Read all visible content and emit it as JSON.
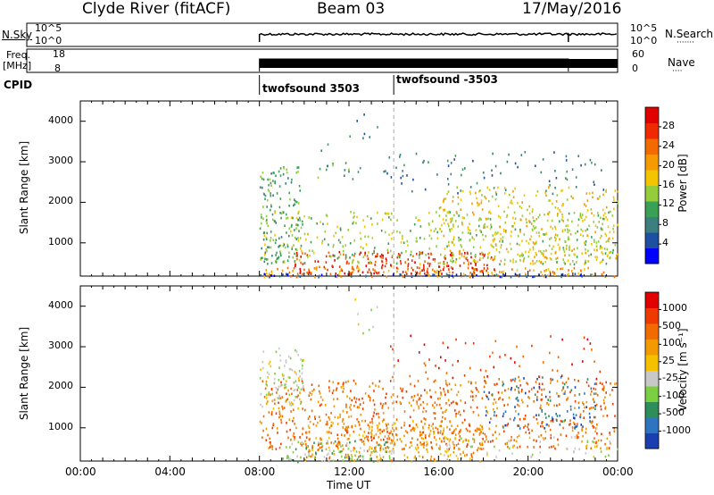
{
  "header": {
    "station": "Clyde River (fitACF)",
    "beam": "Beam 03",
    "date": "17/May/2016"
  },
  "strip_nsky": {
    "left_label": "N.Sky",
    "left_ticks": [
      "10^5",
      "10^0"
    ],
    "right_ticks": [
      "10^5",
      "10^0"
    ],
    "right_label": "N.Search",
    "right_dots": "·······"
  },
  "strip_freq": {
    "left_label_1": "Freq.",
    "left_label_2": "[MHz]",
    "left_ticks": [
      "18",
      "8"
    ],
    "right_ticks": [
      "60",
      "0"
    ],
    "right_label": "Nave",
    "right_dots": "····"
  },
  "cpid": {
    "label": "CPID",
    "segments": [
      {
        "text": "twofsound 3503",
        "start_hour": 8.0
      },
      {
        "text": "twofsound -3503",
        "start_hour": 14.0
      }
    ]
  },
  "time_axis": {
    "ticks": [
      "00:00",
      "04:00",
      "08:00",
      "12:00",
      "16:00",
      "20:00",
      "00:00"
    ],
    "label": "Time UT"
  },
  "chart_data": [
    {
      "type": "heatmap",
      "title": "",
      "xlabel": "Time UT",
      "ylabel": "Slant Range [km]",
      "x_range_hours": [
        0,
        24
      ],
      "y_range_km": [
        180,
        4500
      ],
      "yticks": [
        1000,
        2000,
        3000,
        4000
      ],
      "colorbar_label": "Power [dB]",
      "colorbar_ticks": [
        "28",
        "24",
        "20",
        "16",
        "12",
        "8",
        "4"
      ],
      "colorbar_range": [
        0,
        32
      ],
      "colors": [
        "#0000ff",
        "#1e4fa0",
        "#3b7f7f",
        "#3aa056",
        "#95cc3c",
        "#f2c500",
        "#f59a00",
        "#f26b00",
        "#f02a00",
        "#e00000"
      ],
      "data_start_hour": 8.0,
      "mode_change_hour": 14.0,
      "regions": [
        {
          "t": [
            8.0,
            24.0
          ],
          "r": [
            180,
            420
          ],
          "level": 6,
          "density": 0.55
        },
        {
          "t": [
            8.0,
            24.0
          ],
          "r": [
            180,
            260
          ],
          "level": 1,
          "density": 0.9
        },
        {
          "t": [
            9.5,
            18.5
          ],
          "r": [
            250,
            800
          ],
          "level": 8,
          "density": 0.65
        },
        {
          "t": [
            8.0,
            24.0
          ],
          "r": [
            500,
            1800
          ],
          "level": 4,
          "density": 0.35
        },
        {
          "t": [
            8.0,
            9.8
          ],
          "r": [
            500,
            2900
          ],
          "level": 3,
          "density": 0.5
        },
        {
          "t": [
            16.0,
            24.0
          ],
          "r": [
            500,
            2400
          ],
          "level": 5,
          "density": 0.35
        },
        {
          "t": [
            10.5,
            12.5
          ],
          "r": [
            2600,
            3000
          ],
          "level": 3,
          "density": 0.3
        },
        {
          "t": [
            13.5,
            23.5
          ],
          "r": [
            2200,
            3300
          ],
          "level": 2,
          "density": 0.12
        },
        {
          "t": [
            10.5,
            14.0
          ],
          "r": [
            3300,
            4300
          ],
          "level": 2,
          "density": 0.04
        }
      ]
    },
    {
      "type": "heatmap",
      "title": "",
      "xlabel": "Time UT",
      "ylabel": "Slant Range [km]",
      "x_range_hours": [
        0,
        24
      ],
      "y_range_km": [
        180,
        4500
      ],
      "yticks": [
        1000,
        2000,
        3000,
        4000
      ],
      "colorbar_label": "Velocity [m s⁻¹]",
      "colorbar_ticks": [
        "1000",
        "500",
        "100",
        "25",
        "-25",
        "-100",
        "-500",
        "-1000"
      ],
      "colors": [
        "#1b3fb0",
        "#2f74c0",
        "#2e8e5a",
        "#7ccf40",
        "#c8c8c8",
        "#f5c000",
        "#f29a00",
        "#f26b00",
        "#ee3a00",
        "#e00000"
      ],
      "data_start_hour": 8.0,
      "mode_change_hour": 14.0,
      "regions": [
        {
          "t": [
            9.0,
            14.0
          ],
          "r": [
            180,
            700
          ],
          "level": 3,
          "density": 0.6
        },
        {
          "t": [
            8.0,
            24.0
          ],
          "r": [
            500,
            2200
          ],
          "level": 7,
          "density": 0.45
        },
        {
          "t": [
            8.0,
            10.0
          ],
          "r": [
            1500,
            3000
          ],
          "level": 4,
          "density": 0.5
        },
        {
          "t": [
            18.0,
            23.0
          ],
          "r": [
            1000,
            2300
          ],
          "level": 1,
          "density": 0.25
        },
        {
          "t": [
            16.0,
            24.0
          ],
          "r": [
            300,
            800
          ],
          "level": 4,
          "density": 0.25
        },
        {
          "t": [
            10.0,
            18.0
          ],
          "r": [
            200,
            1200
          ],
          "level": 6,
          "density": 0.5
        },
        {
          "t": [
            13.5,
            23.5
          ],
          "r": [
            2200,
            3300
          ],
          "level": 8,
          "density": 0.1
        },
        {
          "t": [
            10.5,
            14.0
          ],
          "r": [
            3300,
            4300
          ],
          "level": 4,
          "density": 0.04
        }
      ]
    }
  ]
}
